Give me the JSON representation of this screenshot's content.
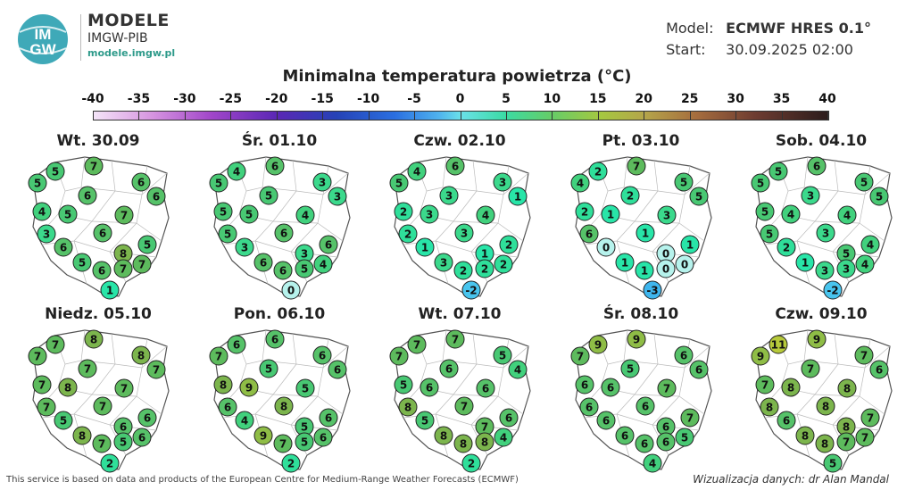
{
  "brand": {
    "logo_text_top": "IM",
    "logo_text_bottom": "GW",
    "line1": "MODELE",
    "line2": "IMGW-PIB",
    "line3": "modele.imgw.pl"
  },
  "model": {
    "model_label": "Model:",
    "model_value": "ECMWF HRES 0.1°",
    "start_label": "Start:",
    "start_value": "30.09.2025 02:00"
  },
  "title": "Minimalna temperatura powietrza (°C)",
  "scale": [
    "-40",
    "-35",
    "-30",
    "-25",
    "-20",
    "-15",
    "-10",
    "-5",
    "0",
    "5",
    "10",
    "15",
    "20",
    "25",
    "30",
    "35",
    "40"
  ],
  "footer": {
    "left": "This service is based on data and products of the European Centre for Medium-Range Weather Forecasts (ECMWF)",
    "right": "Wizualizacja danych: dr Alan Mandal"
  },
  "panels": [
    {
      "date": "Wt. 30.09",
      "values": [
        5,
        7,
        6,
        5,
        6,
        6,
        4,
        5,
        7,
        3,
        6,
        5,
        6,
        8,
        5,
        6,
        7,
        7,
        1
      ]
    },
    {
      "date": "Śr. 01.10",
      "values": [
        4,
        6,
        3,
        5,
        5,
        3,
        5,
        5,
        4,
        5,
        6,
        6,
        3,
        3,
        6,
        6,
        5,
        4,
        0
      ]
    },
    {
      "date": "Czw. 02.10",
      "values": [
        4,
        6,
        3,
        5,
        3,
        1,
        2,
        3,
        4,
        2,
        3,
        2,
        1,
        1,
        3,
        2,
        2,
        2,
        -2
      ]
    },
    {
      "date": "Pt. 03.10",
      "values": [
        2,
        7,
        5,
        4,
        2,
        5,
        2,
        1,
        3,
        6,
        1,
        1,
        0,
        0,
        1,
        1,
        0,
        0,
        -3
      ]
    },
    {
      "date": "Sob. 04.10",
      "values": [
        5,
        6,
        5,
        5,
        3,
        5,
        5,
        4,
        4,
        5,
        3,
        4,
        2,
        5,
        1,
        3,
        3,
        4,
        -2
      ]
    },
    {
      "date": "Niedz. 05.10",
      "values": [
        7,
        8,
        8,
        7,
        7,
        7,
        7,
        8,
        7,
        7,
        7,
        6,
        5,
        6,
        8,
        7,
        5,
        6,
        2
      ]
    },
    {
      "date": "Pon. 06.10",
      "values": [
        6,
        6,
        6,
        7,
        5,
        6,
        8,
        9,
        5,
        6,
        8,
        6,
        4,
        5,
        9,
        7,
        5,
        6,
        2
      ]
    },
    {
      "date": "Wt. 07.10",
      "values": [
        7,
        7,
        5,
        7,
        6,
        4,
        5,
        6,
        6,
        8,
        7,
        6,
        5,
        7,
        8,
        8,
        8,
        4,
        2
      ]
    },
    {
      "date": "Śr. 08.10",
      "values": [
        9,
        9,
        6,
        7,
        5,
        6,
        6,
        6,
        7,
        6,
        6,
        7,
        6,
        6,
        6,
        6,
        6,
        5,
        4
      ]
    },
    {
      "date": "Czw. 09.10",
      "values": [
        11,
        9,
        7,
        9,
        7,
        6,
        7,
        8,
        8,
        8,
        8,
        7,
        6,
        8,
        8,
        8,
        7,
        7,
        5
      ]
    }
  ],
  "palette": {
    "neg3": "#3fb6ee",
    "neg2": "#49c5ee",
    "neg1": "#5ad5ea",
    "zero": "#b6f2ec",
    "c1": "#28e5a8",
    "c2": "#2fdf9a",
    "c3": "#3bd98c",
    "c4": "#41d17d",
    "c5": "#48c873",
    "c6": "#56c269",
    "c7": "#5dbb5d",
    "c8": "#7cb54d",
    "c9": "#8fbd46",
    "c10": "#a0c040",
    "c11": "#b6c93a"
  }
}
